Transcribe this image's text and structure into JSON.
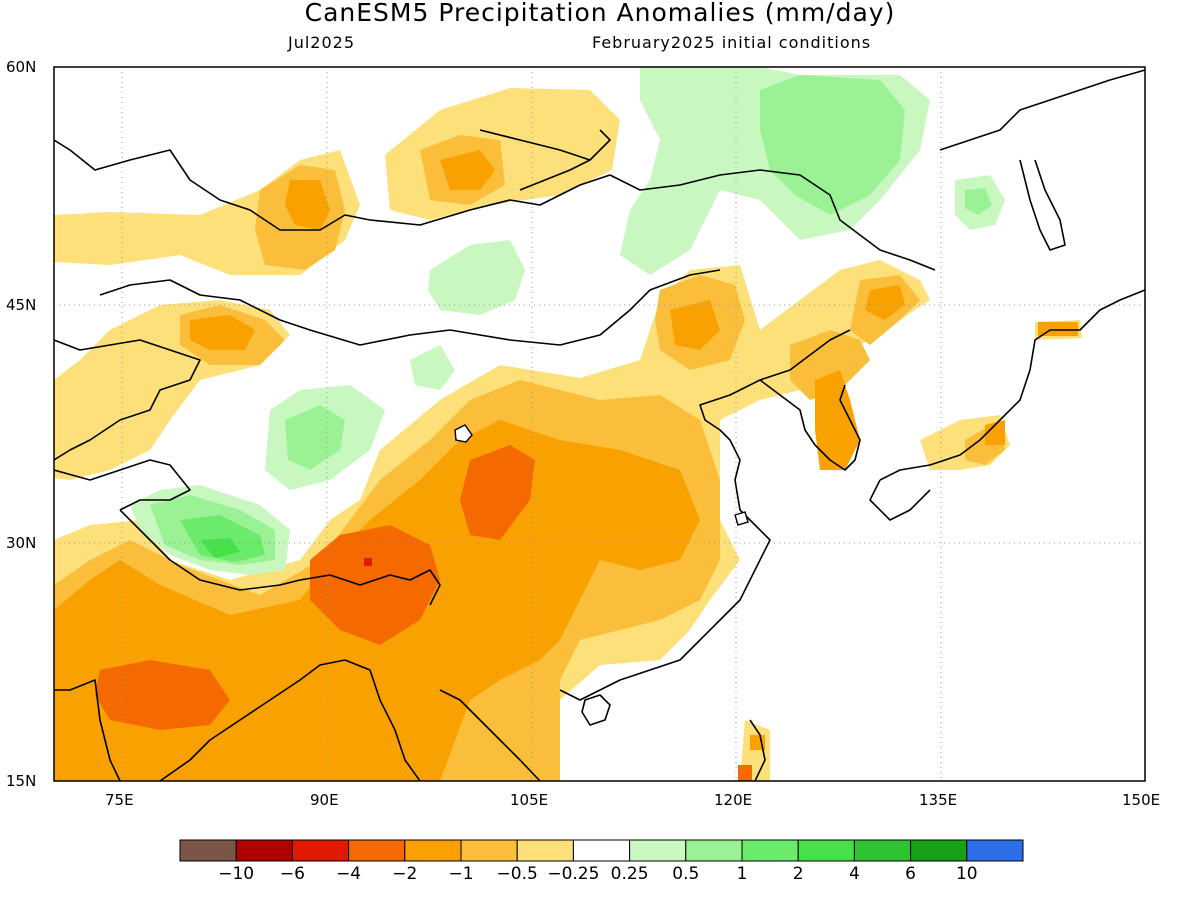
{
  "title": "CanESM5 Precipitation Anomalies (mm/day)",
  "forecast_month": "Jul2025",
  "initial_conditions": "February2025 initial conditions",
  "latitude_labels": [
    "60N",
    "45N",
    "30N",
    "15N"
  ],
  "longitude_labels": [
    "75E",
    "90E",
    "105E",
    "120E",
    "135E",
    "150E"
  ],
  "map_extent": {
    "lon_min": 70,
    "lon_max": 150,
    "lat_min": 15,
    "lat_max": 60
  },
  "colorbar": {
    "colors": [
      "#7a5548",
      "#b10000",
      "#e01a00",
      "#f46a00",
      "#f9a100",
      "#fbbe3a",
      "#fde07a",
      "#ffffff",
      "#c8f7c0",
      "#9af294",
      "#6cea6b",
      "#46e04a",
      "#2fc232",
      "#16a116",
      "#2d6fe8"
    ],
    "labels": [
      "−10",
      "−6",
      "−4",
      "−2",
      "−1",
      "−0.5",
      "−0.25",
      "0.25",
      "0.5",
      "1",
      "2",
      "4",
      "6",
      "10"
    ]
  }
}
